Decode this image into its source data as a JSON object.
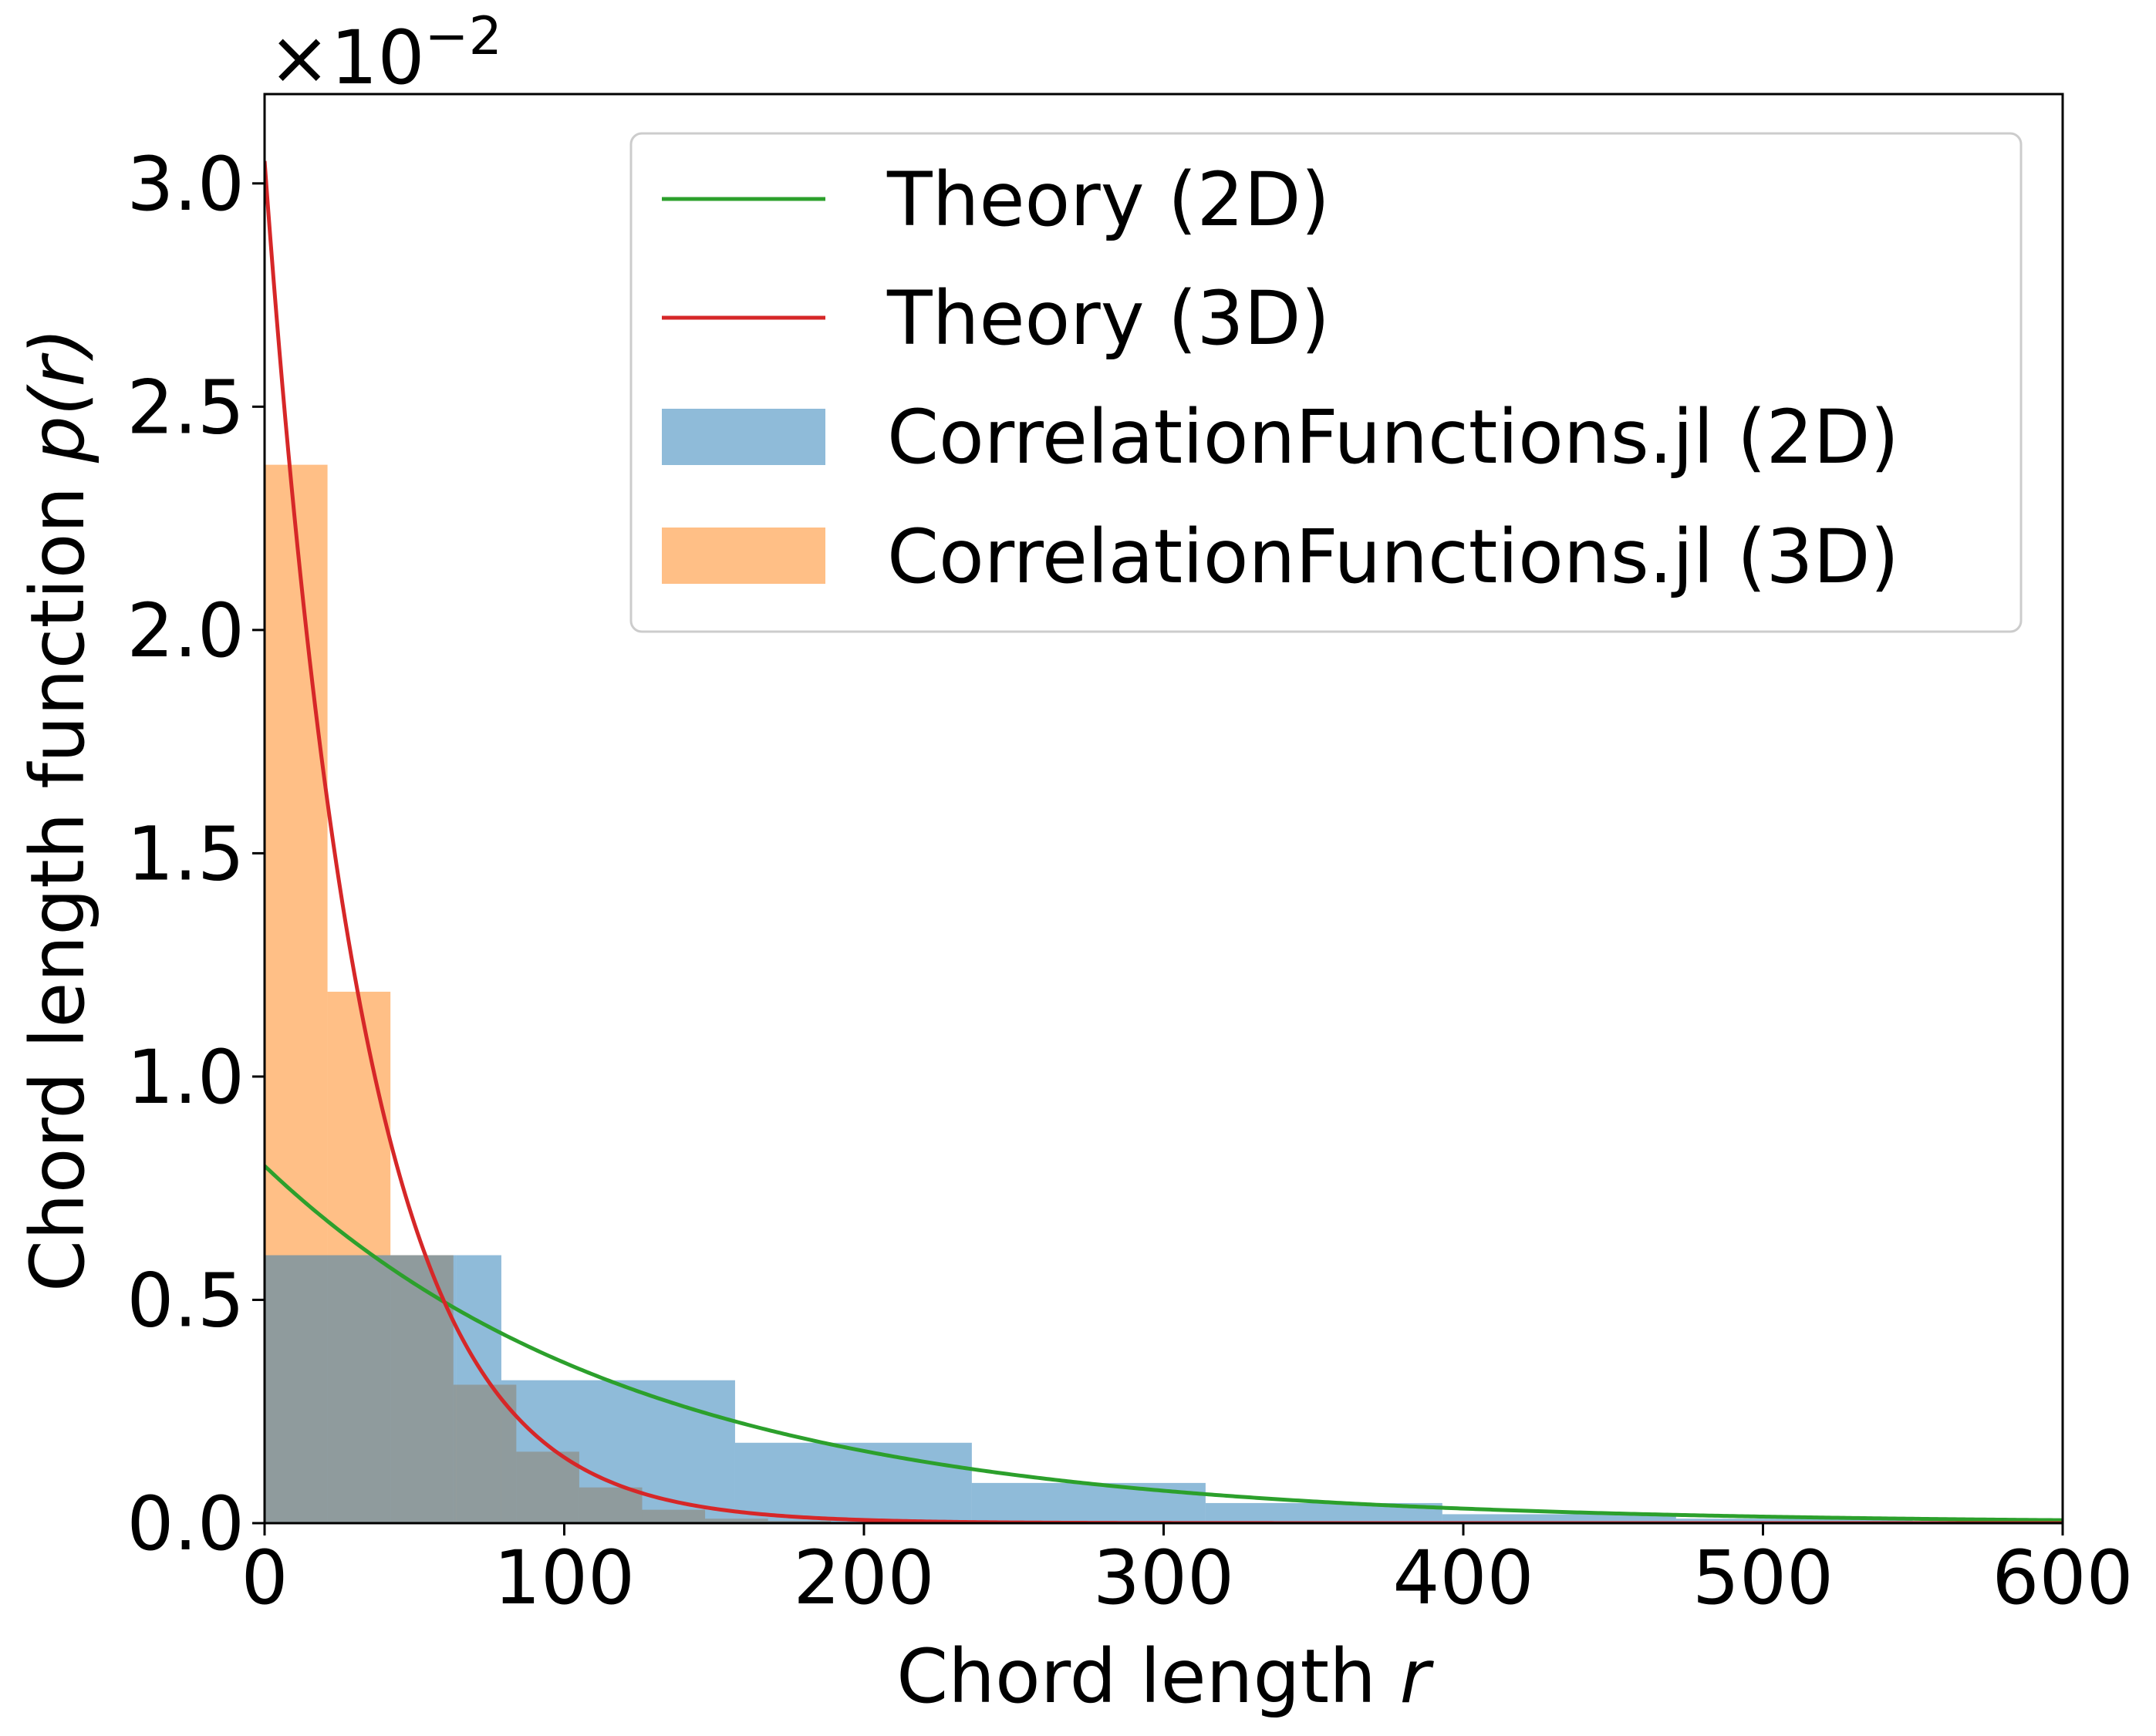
{
  "chart_data": {
    "type": "histogram_line",
    "title": "",
    "xlabel": "Chord length",
    "xlabel_var": "r",
    "ylabel": "Chord length function",
    "ylabel_var": "p(r)",
    "y_multiplier": {
      "base": "×10",
      "exponent": "−2"
    },
    "xlim": [
      0,
      600
    ],
    "ylim": [
      0,
      3.2
    ],
    "y_unit_scale": 0.01,
    "x_ticks": [
      0,
      100,
      200,
      300,
      400,
      500,
      600
    ],
    "x_tick_labels": [
      "0",
      "100",
      "200",
      "300",
      "400",
      "500",
      "600"
    ],
    "y_ticks": [
      0.0,
      0.5,
      1.0,
      1.5,
      2.0,
      2.5,
      3.0
    ],
    "y_tick_labels": [
      "0.0",
      "0.5",
      "1.0",
      "1.5",
      "2.0",
      "2.5",
      "3.0"
    ],
    "legend_position": "top-right",
    "series": [
      {
        "name": "Theory (2D)",
        "kind": "line",
        "color": "#2ca02c",
        "model": "exponential",
        "amplitude": 0.8,
        "scale": 125,
        "x_range": [
          0,
          600
        ]
      },
      {
        "name": "Theory (3D)",
        "kind": "line",
        "color": "#d62728",
        "model": "exponential",
        "amplitude": 3.05,
        "scale": 33,
        "x_range": [
          0,
          600
        ]
      },
      {
        "name": "CorrelationFunctions.jl (2D)",
        "kind": "histogram",
        "color": "#1f77b4",
        "opacity": 0.5,
        "bin_edges": [
          0,
          64,
          79,
          157,
          236,
          314,
          393,
          471,
          550,
          600
        ],
        "values": [
          0.6,
          0.6,
          0.32,
          0.18,
          0.09,
          0.045,
          0.02,
          0.01,
          0.005
        ]
      },
      {
        "name": "CorrelationFunctions.jl (3D)",
        "kind": "histogram",
        "color": "#ff7f0e",
        "opacity": 0.5,
        "bin_edges": [
          0,
          21,
          42,
          63,
          84,
          105,
          126,
          147,
          168,
          189,
          210
        ],
        "values": [
          2.37,
          1.19,
          0.6,
          0.31,
          0.16,
          0.08,
          0.03,
          0.01,
          0.005,
          0.002
        ]
      }
    ]
  }
}
